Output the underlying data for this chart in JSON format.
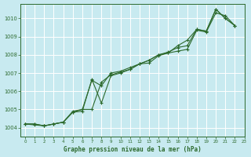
{
  "title": "Graphe pression niveau de la mer (hPa)",
  "bg_color": "#c8eaf0",
  "grid_color": "#ffffff",
  "line_color": "#2d6a2d",
  "xlim": [
    -0.5,
    23
  ],
  "ylim": [
    1003.5,
    1010.8
  ],
  "yticks": [
    1004,
    1005,
    1006,
    1007,
    1008,
    1009,
    1010
  ],
  "xticks": [
    0,
    1,
    2,
    3,
    4,
    5,
    6,
    7,
    8,
    9,
    10,
    11,
    12,
    13,
    14,
    15,
    16,
    17,
    18,
    19,
    20,
    21,
    22,
    23
  ],
  "series": [
    [
      1004.2,
      1004.2,
      1004.1,
      1004.2,
      1004.3,
      1004.9,
      1005.0,
      1006.6,
      1006.3,
      1007.0,
      1007.1,
      1007.3,
      1007.5,
      1007.7,
      1008.0,
      1008.15,
      1008.4,
      1008.5,
      1009.4,
      1009.3,
      1010.5,
      1010.0,
      1009.6,
      null
    ],
    [
      1004.2,
      1004.2,
      1004.1,
      1004.2,
      1004.3,
      1004.85,
      1005.0,
      1005.0,
      1006.5,
      1006.9,
      1007.05,
      1007.2,
      1007.5,
      1007.55,
      1007.95,
      1008.1,
      1008.5,
      1008.8,
      1009.4,
      1009.3,
      1010.5,
      1010.0,
      1009.6,
      null
    ],
    [
      1004.2,
      1004.15,
      1004.1,
      1004.2,
      1004.3,
      1004.85,
      1004.9,
      1006.65,
      1005.35,
      1006.85,
      1007.0,
      1007.2,
      1007.5,
      1007.7,
      1008.0,
      1008.1,
      1008.2,
      1008.3,
      1009.35,
      1009.25,
      1010.3,
      1010.15,
      1009.6,
      null
    ]
  ]
}
